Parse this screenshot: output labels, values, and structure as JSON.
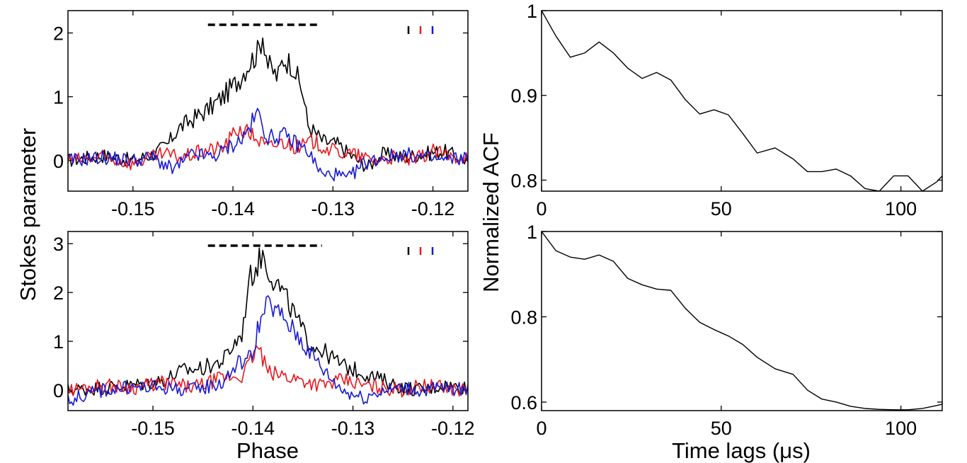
{
  "figure": {
    "left_ylabel": "Stokes parameter",
    "left_xlabel": "Phase",
    "right_ylabel": "Normalized ACF",
    "right_xlabel": "Time lags (μs)"
  },
  "colors": {
    "I": "#000000",
    "L": "#e8191e",
    "V": "#1a1ad2"
  },
  "chart_data": [
    {
      "id": "stokes-top",
      "type": "line",
      "xlim": [
        -0.1565,
        -0.1165
      ],
      "ylim": [
        -0.48,
        2.35
      ],
      "xticks": [
        -0.15,
        -0.14,
        -0.13,
        -0.12
      ],
      "xtick_labels": [
        "-0.15",
        "-0.14",
        "-0.13",
        "-0.12"
      ],
      "yticks": [
        0,
        1,
        2
      ],
      "ytick_labels": [
        "0",
        "1",
        "2"
      ],
      "window": [
        -0.1425,
        -0.1313
      ],
      "legend_marks": [
        "I",
        "L",
        "V"
      ],
      "series": [
        {
          "key": "I",
          "x": [
            -0.1565,
            -0.153,
            -0.15,
            -0.148,
            -0.1465,
            -0.1455,
            -0.144,
            -0.1425,
            -0.141,
            -0.1395,
            -0.1385,
            -0.1375,
            -0.137,
            -0.1365,
            -0.1355,
            -0.135,
            -0.134,
            -0.133,
            -0.1325,
            -0.131,
            -0.1295,
            -0.128,
            -0.1265,
            -0.125,
            -0.123,
            -0.121,
            -0.119,
            -0.1165
          ],
          "values": [
            0.0,
            0.08,
            0.0,
            0.1,
            0.25,
            0.5,
            0.65,
            0.8,
            1.0,
            1.25,
            1.5,
            1.7,
            2.0,
            1.5,
            1.3,
            1.6,
            1.5,
            1.05,
            0.55,
            0.3,
            0.25,
            0.05,
            -0.1,
            0.1,
            0.05,
            0.1,
            0.15,
            0.0
          ]
        },
        {
          "key": "L",
          "x": [
            -0.1565,
            -0.153,
            -0.15,
            -0.147,
            -0.145,
            -0.143,
            -0.141,
            -0.1395,
            -0.138,
            -0.1365,
            -0.135,
            -0.1335,
            -0.132,
            -0.13,
            -0.128,
            -0.126,
            -0.124,
            -0.122,
            -0.12,
            -0.118,
            -0.1165
          ],
          "values": [
            0.0,
            0.05,
            -0.05,
            0.1,
            0.05,
            0.15,
            0.2,
            0.5,
            0.4,
            0.2,
            0.3,
            0.2,
            0.3,
            0.15,
            0.1,
            0.0,
            0.05,
            0.0,
            0.15,
            0.05,
            0.1
          ]
        },
        {
          "key": "V",
          "x": [
            -0.1565,
            -0.153,
            -0.15,
            -0.148,
            -0.146,
            -0.144,
            -0.142,
            -0.14,
            -0.139,
            -0.1375,
            -0.137,
            -0.1365,
            -0.135,
            -0.134,
            -0.1325,
            -0.131,
            -0.13,
            -0.1285,
            -0.127,
            -0.125,
            -0.123,
            -0.121,
            -0.119,
            -0.1165
          ],
          "values": [
            0.0,
            0.05,
            0.0,
            0.05,
            -0.15,
            0.1,
            0.05,
            0.25,
            0.35,
            0.75,
            0.55,
            0.35,
            0.4,
            0.3,
            0.15,
            -0.25,
            -0.2,
            -0.3,
            -0.05,
            0.05,
            0.1,
            0.05,
            0.0,
            0.05
          ]
        }
      ]
    },
    {
      "id": "stokes-bottom",
      "type": "line",
      "xlim": [
        -0.1585,
        -0.1185
      ],
      "ylim": [
        -0.42,
        3.25
      ],
      "xticks": [
        -0.15,
        -0.14,
        -0.13,
        -0.12
      ],
      "xtick_labels": [
        "-0.15",
        "-0.14",
        "-0.13",
        "-0.12"
      ],
      "yticks": [
        0,
        1,
        2,
        3
      ],
      "ytick_labels": [
        "0",
        "1",
        "2",
        "3"
      ],
      "window": [
        -0.1445,
        -0.1331
      ],
      "legend_marks": [
        "I",
        "L",
        "V"
      ],
      "series": [
        {
          "key": "I",
          "x": [
            -0.1585,
            -0.155,
            -0.152,
            -0.149,
            -0.147,
            -0.145,
            -0.143,
            -0.142,
            -0.141,
            -0.1405,
            -0.1395,
            -0.139,
            -0.1385,
            -0.138,
            -0.137,
            -0.136,
            -0.1345,
            -0.133,
            -0.131,
            -0.129,
            -0.127,
            -0.125,
            -0.123,
            -0.121,
            -0.1185
          ],
          "values": [
            0.0,
            0.05,
            0.1,
            0.2,
            0.4,
            0.45,
            0.6,
            0.9,
            1.2,
            2.2,
            2.6,
            2.8,
            2.5,
            2.3,
            2.0,
            1.6,
            1.0,
            0.8,
            0.5,
            0.35,
            0.2,
            0.05,
            0.0,
            0.1,
            0.05
          ]
        },
        {
          "key": "L",
          "x": [
            -0.1585,
            -0.155,
            -0.152,
            -0.149,
            -0.146,
            -0.143,
            -0.141,
            -0.1395,
            -0.1385,
            -0.137,
            -0.135,
            -0.133,
            -0.131,
            -0.129,
            -0.127,
            -0.125,
            -0.123,
            -0.121,
            -0.1185
          ],
          "values": [
            0.0,
            0.1,
            0.05,
            0.15,
            0.05,
            0.25,
            0.3,
            0.9,
            0.35,
            0.3,
            0.2,
            0.1,
            0.2,
            0.1,
            0.05,
            0.0,
            0.1,
            0.05,
            0.0
          ]
        },
        {
          "key": "V",
          "x": [
            -0.1585,
            -0.155,
            -0.152,
            -0.149,
            -0.146,
            -0.143,
            -0.1415,
            -0.14,
            -0.1395,
            -0.1385,
            -0.137,
            -0.1355,
            -0.134,
            -0.1325,
            -0.131,
            -0.129,
            -0.127,
            -0.125,
            -0.123,
            -0.121,
            -0.1185
          ],
          "values": [
            -0.2,
            0.0,
            0.05,
            0.05,
            0.0,
            0.15,
            0.55,
            0.7,
            1.3,
            1.75,
            1.5,
            1.1,
            0.7,
            0.3,
            0.0,
            -0.15,
            0.0,
            0.05,
            0.0,
            0.05,
            0.0
          ]
        }
      ]
    },
    {
      "id": "acf-top",
      "type": "line",
      "xlim": [
        0,
        111.5
      ],
      "ylim": [
        0.787,
        1.0
      ],
      "xticks": [
        0,
        50,
        100
      ],
      "xtick_labels": [
        "0",
        "50",
        "100"
      ],
      "yticks": [
        0.8,
        0.9,
        1.0
      ],
      "ytick_labels": [
        "0.8",
        "0.9",
        "1"
      ],
      "series": [
        {
          "key": "acf",
          "x": [
            0,
            4,
            8,
            12,
            16,
            20,
            24,
            28,
            32,
            36,
            40,
            44,
            48,
            52,
            56,
            60,
            65,
            70,
            74,
            78,
            82,
            86,
            90,
            94,
            98,
            102,
            106,
            110,
            111.5
          ],
          "values": [
            1.0,
            0.97,
            0.945,
            0.95,
            0.963,
            0.95,
            0.932,
            0.92,
            0.927,
            0.918,
            0.895,
            0.878,
            0.883,
            0.877,
            0.855,
            0.832,
            0.838,
            0.825,
            0.81,
            0.81,
            0.813,
            0.805,
            0.79,
            0.787,
            0.805,
            0.805,
            0.787,
            0.798,
            0.805
          ]
        }
      ]
    },
    {
      "id": "acf-bottom",
      "type": "line",
      "xlim": [
        0,
        111.5
      ],
      "ylim": [
        0.58,
        1.0
      ],
      "xticks": [
        0,
        50,
        100
      ],
      "xtick_labels": [
        "0",
        "50",
        "100"
      ],
      "yticks": [
        0.6,
        0.8,
        1.0
      ],
      "ytick_labels": [
        "0.6",
        "0.8",
        "1"
      ],
      "series": [
        {
          "key": "acf",
          "x": [
            0,
            4,
            8,
            12,
            16,
            20,
            24,
            28,
            32,
            36,
            40,
            44,
            48,
            52,
            56,
            60,
            65,
            70,
            74,
            78,
            82,
            86,
            90,
            94,
            98,
            102,
            106,
            110,
            111.5
          ],
          "values": [
            1.0,
            0.955,
            0.94,
            0.935,
            0.945,
            0.93,
            0.89,
            0.875,
            0.865,
            0.862,
            0.82,
            0.787,
            0.77,
            0.755,
            0.735,
            0.705,
            0.678,
            0.665,
            0.628,
            0.607,
            0.6,
            0.59,
            0.585,
            0.583,
            0.582,
            0.582,
            0.585,
            0.592,
            0.595
          ]
        }
      ]
    }
  ]
}
